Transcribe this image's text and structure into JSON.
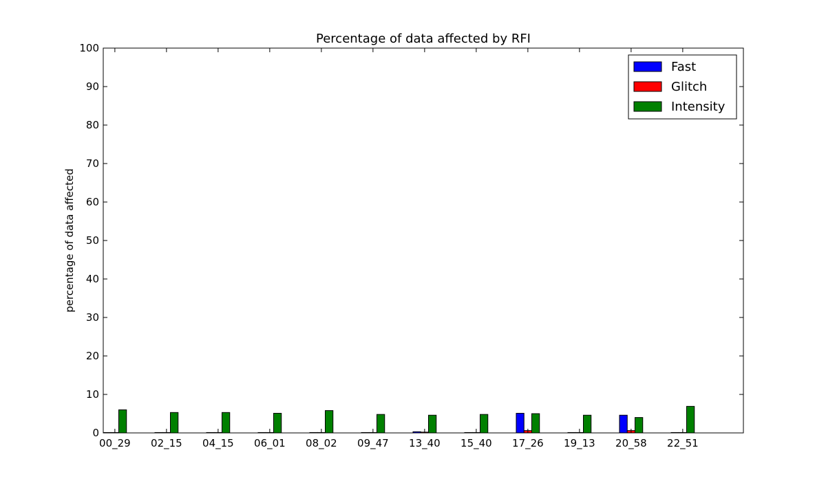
{
  "chart_data": {
    "type": "bar",
    "title": "Percentage of data affected by RFI",
    "xlabel": "",
    "ylabel": "percentage of data affected",
    "ylim": [
      0,
      100
    ],
    "yticks": [
      0,
      10,
      20,
      30,
      40,
      50,
      60,
      70,
      80,
      90,
      100
    ],
    "grid": false,
    "legend_position": "top-right",
    "categories": [
      "00_29",
      "02_15",
      "04_15",
      "06_01",
      "08_02",
      "09_47",
      "13_40",
      "15_40",
      "17_26",
      "19_13",
      "20_58",
      "22_51"
    ],
    "series": [
      {
        "name": "Fast",
        "color": "#0000ff",
        "values": [
          0.1,
          0.1,
          0.1,
          0.1,
          0.1,
          0.1,
          0.3,
          0.1,
          5.1,
          0.1,
          4.6,
          0.1
        ]
      },
      {
        "name": "Glitch",
        "color": "#ff0000",
        "values": [
          0.1,
          0.1,
          0.1,
          0.1,
          0.1,
          0.1,
          0.2,
          0.1,
          0.6,
          0.1,
          0.6,
          0.1
        ]
      },
      {
        "name": "Intensity",
        "color": "#008000",
        "values": [
          6.0,
          5.3,
          5.3,
          5.1,
          5.8,
          4.8,
          4.6,
          4.8,
          5.0,
          4.6,
          4.0,
          6.9
        ]
      }
    ]
  }
}
